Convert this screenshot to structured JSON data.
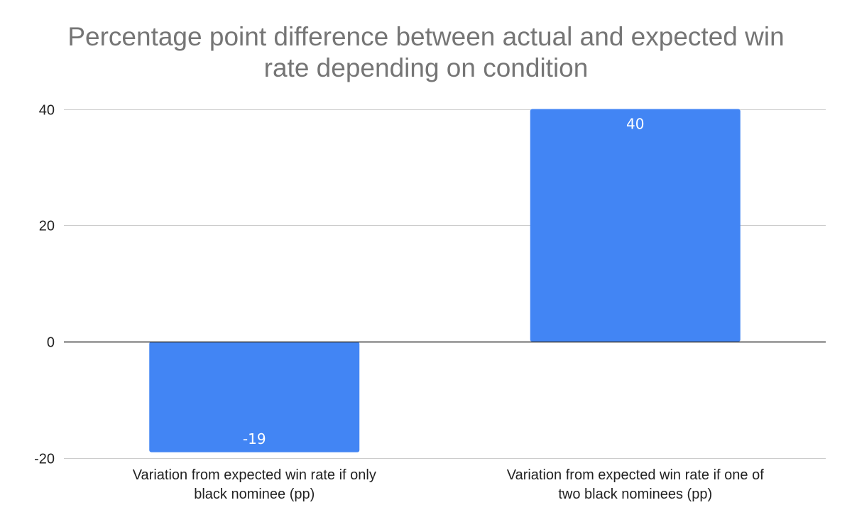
{
  "chart_data": {
    "type": "bar",
    "title": "Percentage point difference between actual and expected win rate depending on condition",
    "title_lines": [
      "Percentage point difference between actual and expected win",
      "rate depending on condition"
    ],
    "categories": [
      "Variation from expected win rate if only black nominee (pp)",
      "Variation from expected win rate if one of two black nominees (pp)"
    ],
    "category_label_lines": [
      [
        "Variation from expected win rate if only",
        "black nominee (pp)"
      ],
      [
        "Variation from expected win rate if one of",
        "two black nominees (pp)"
      ]
    ],
    "values": [
      -19,
      40
    ],
    "data_labels": [
      "-19",
      "40"
    ],
    "ylim": [
      -20,
      40
    ],
    "yticks": [
      -20,
      0,
      20,
      40
    ],
    "ytick_labels": [
      "-20",
      "0",
      "20",
      "40"
    ],
    "xlabel": "",
    "ylabel": "",
    "grid": true,
    "bar_color": "#4285f4",
    "grid_color": "#cccccc",
    "zero_line_color": "#333333"
  }
}
